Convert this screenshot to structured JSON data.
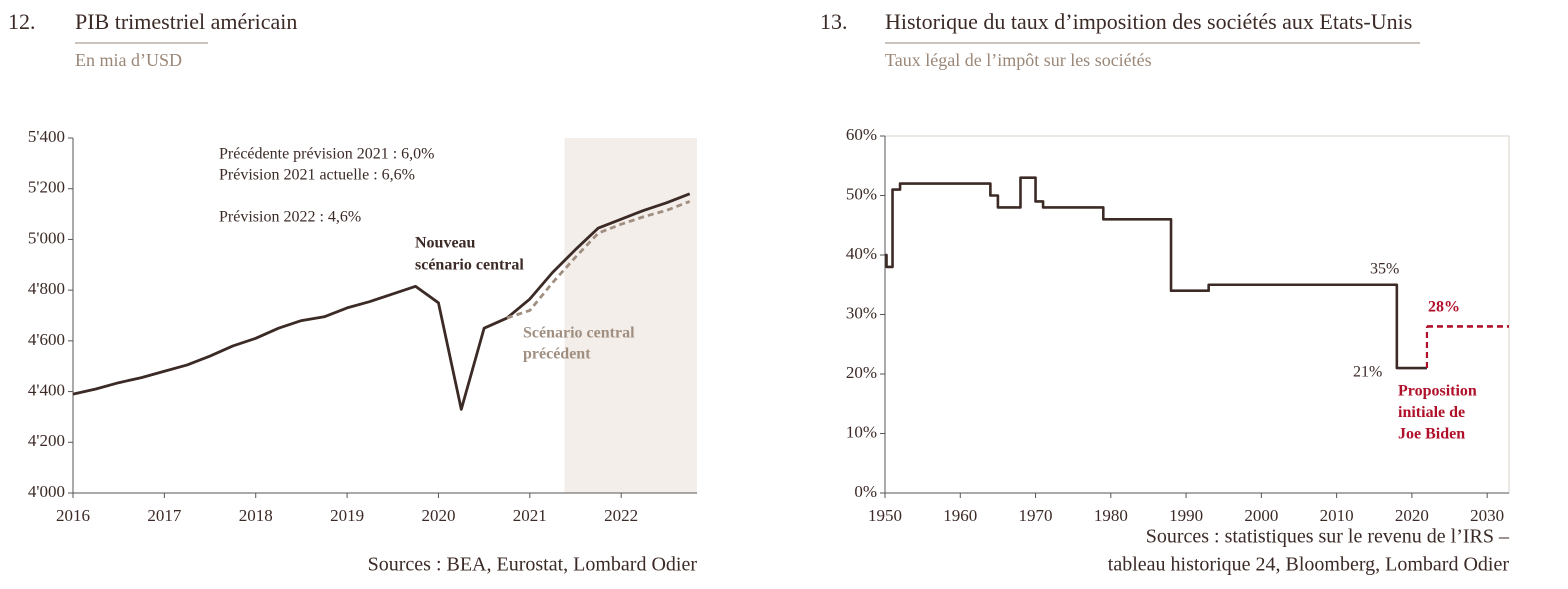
{
  "chart_data": [
    {
      "type": "line",
      "number": "12.",
      "title": "PIB trimestriel américain",
      "subtitle": "En mia d’USD",
      "x": [
        2016,
        2016.25,
        2016.5,
        2016.75,
        2017,
        2017.25,
        2017.5,
        2017.75,
        2018,
        2018.25,
        2018.5,
        2018.75,
        2019,
        2019.25,
        2019.5,
        2019.75,
        2020,
        2020.25,
        2020.5,
        2020.75,
        2021,
        2021.25,
        2021.5,
        2021.75,
        2022,
        2022.25,
        2022.5,
        2022.75
      ],
      "series": [
        {
          "color": "#3b2a26",
          "dashed": false,
          "values": [
            4390,
            4410,
            4435,
            4455,
            4480,
            4505,
            4540,
            4580,
            4610,
            4650,
            4680,
            4695,
            4730,
            4755,
            4785,
            4815,
            4750,
            4330,
            4650,
            4690,
            4765,
            4870,
            4960,
            5045,
            5080,
            5115,
            5145,
            5180
          ]
        },
        {
          "color": "#a08f80",
          "dashed": true,
          "values": [
            null,
            null,
            null,
            null,
            null,
            null,
            null,
            null,
            null,
            null,
            null,
            null,
            null,
            null,
            null,
            null,
            null,
            null,
            null,
            4690,
            4720,
            4830,
            4930,
            5025,
            5060,
            5090,
            5115,
            5150
          ]
        }
      ],
      "shaded_xrange": [
        2021.38,
        2022.83
      ],
      "shade_color": "#f4eeea",
      "xlim": [
        2016,
        2022.83
      ],
      "xticks": [
        2016,
        2017,
        2018,
        2019,
        2020,
        2021,
        2022
      ],
      "ylim": [
        4000,
        5400
      ],
      "yticks": [
        {
          "value": 4000,
          "label": "4'000"
        },
        {
          "value": 4200,
          "label": "4'200"
        },
        {
          "value": 4400,
          "label": "4'400"
        },
        {
          "value": 4600,
          "label": "4'600"
        },
        {
          "value": 4800,
          "label": "4'800"
        },
        {
          "value": 5000,
          "label": "5'000"
        },
        {
          "value": 5200,
          "label": "5'200"
        },
        {
          "value": 5400,
          "label": "5'400"
        }
      ],
      "annotations": [
        {
          "lines": [
            "Précédente prévision 2021 : 6,0%",
            "Prévision 2021 actuelle : 6,6%"
          ]
        },
        {
          "lines": [
            "Prévision 2022 : 4,6%"
          ]
        },
        {
          "lines": [
            "Nouveau",
            "scénario central"
          ]
        },
        {
          "lines": [
            "Scénario central",
            "précédent"
          ]
        }
      ],
      "sources": [
        "Sources : BEA, Eurostat, Lombard Odier"
      ]
    },
    {
      "type": "step",
      "number": "13.",
      "title": "Historique du taux d’imposition des sociétés aux Etats-Unis",
      "subtitle": "Taux légal de l’impôt sur les sociétés",
      "series": [
        {
          "color": "#3b2a26",
          "dashed": false,
          "x": [
            1950,
            1950.2,
            1951,
            1952,
            1964,
            1965,
            1968,
            1970,
            1971,
            1979,
            1988,
            1993,
            2018,
            2022
          ],
          "values": [
            40,
            38,
            51,
            52,
            50,
            48,
            53,
            49,
            48,
            46,
            34,
            35,
            21,
            21
          ]
        },
        {
          "color": "#b0102a",
          "dashed": true,
          "x": [
            2022,
            2032.9
          ],
          "values": [
            28,
            28
          ]
        }
      ],
      "xlim": [
        1950,
        2032.9
      ],
      "xticks": [
        1950,
        1960,
        1970,
        1980,
        1990,
        2000,
        2010,
        2020,
        2030
      ],
      "ylim": [
        0,
        60
      ],
      "yticks": [
        {
          "value": 0,
          "label": "0%"
        },
        {
          "value": 10,
          "label": "10%"
        },
        {
          "value": 20,
          "label": "20%"
        },
        {
          "value": 30,
          "label": "30%"
        },
        {
          "value": 40,
          "label": "40%"
        },
        {
          "value": 50,
          "label": "50%"
        },
        {
          "value": 60,
          "label": "60%"
        }
      ],
      "annotations": [
        {
          "lines": [
            "35%"
          ]
        },
        {
          "lines": [
            "21%"
          ]
        },
        {
          "lines": [
            "28%"
          ]
        },
        {
          "lines": [
            "Proposition",
            "initiale de",
            "Joe Biden"
          ]
        }
      ],
      "sources": [
        "Sources : statistiques sur le revenu de l’IRS –",
        "tableau historique 24, Bloomberg, Lombard Odier"
      ]
    }
  ]
}
